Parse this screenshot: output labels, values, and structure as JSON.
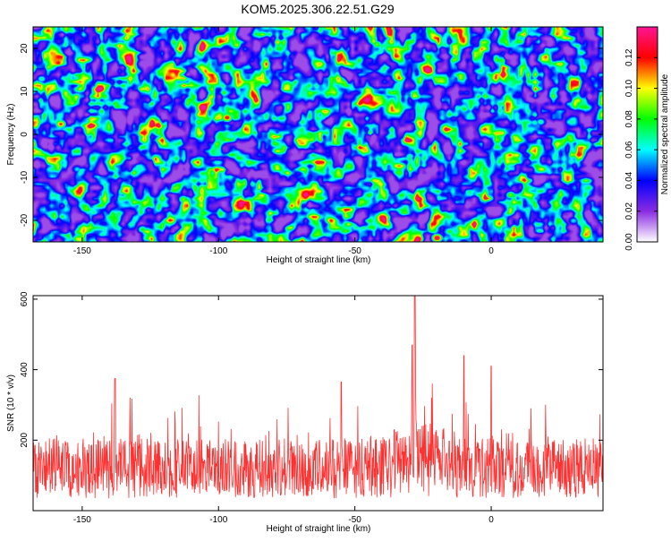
{
  "title": "KOM5.2025.306.22.51.G29",
  "chart_data": [
    {
      "type": "heatmap",
      "xlabel": "Height of straight line (km)",
      "ylabel": "Frequency (Hz)",
      "xlim": [
        -168,
        41
      ],
      "ylim": [
        -25,
        25
      ],
      "xticks": [
        -150,
        -100,
        -50,
        0
      ],
      "yticks": [
        -20,
        -10,
        0,
        10,
        20
      ],
      "colorbar": {
        "label": "Normalized spectral amplitude",
        "range": [
          0,
          0.14
        ],
        "ticks": [
          0.0,
          0.02,
          0.04,
          0.06,
          0.08,
          0.1,
          0.12
        ],
        "tick_labels": [
          "0.00",
          "0.02",
          "0.04",
          "0.06",
          "0.08",
          "0.10",
          "0.12"
        ],
        "colors": [
          "#ffffff",
          "#8a2be2",
          "#0000ff",
          "#00ffff",
          "#00ff00",
          "#ffff00",
          "#ff0000",
          "#ff1493"
        ]
      },
      "hotspots": [
        {
          "x": -158,
          "y": 2.5,
          "v": 0.12
        },
        {
          "x": -97,
          "y": 4,
          "v": 0.13
        },
        {
          "x": -20,
          "y": -24,
          "v": 0.14
        },
        {
          "x": -113,
          "y": -15,
          "v": 0.09
        },
        {
          "x": -128,
          "y": -22,
          "v": 0.08
        },
        {
          "x": -42,
          "y": 21,
          "v": 0.09
        },
        {
          "x": 7,
          "y": -14,
          "v": 0.09
        },
        {
          "x": -10,
          "y": 6,
          "v": 0.08
        },
        {
          "x": 18,
          "y": 3,
          "v": 0.07
        },
        {
          "x": -165,
          "y": 13,
          "v": 0.07
        },
        {
          "x": -30,
          "y": -5,
          "v": 0.07
        },
        {
          "x": -75,
          "y": -13,
          "v": 0.07
        },
        {
          "x": -140,
          "y": 21,
          "v": 0.07
        },
        {
          "x": -60,
          "y": 10,
          "v": 0.06
        },
        {
          "x": -152,
          "y": -8,
          "v": 0.06
        },
        {
          "x": 30,
          "y": -20,
          "v": 0.06
        }
      ]
    },
    {
      "type": "line",
      "xlabel": "Height of straight line (km)",
      "ylabel": "SNR (10 * v/v)",
      "xlim": [
        -168,
        41
      ],
      "ylim": [
        0,
        610
      ],
      "xticks": [
        -150,
        -100,
        -50,
        0
      ],
      "yticks": [
        200,
        400,
        600
      ],
      "color": "#ff2020",
      "baseline_mean": 120,
      "peaks": [
        {
          "x": -28,
          "y": 610
        },
        {
          "x": -29,
          "y": 470
        },
        {
          "x": -10,
          "y": 440
        },
        {
          "x": -138,
          "y": 375
        },
        {
          "x": -55,
          "y": 365
        },
        {
          "x": 0,
          "y": 410
        }
      ]
    }
  ]
}
